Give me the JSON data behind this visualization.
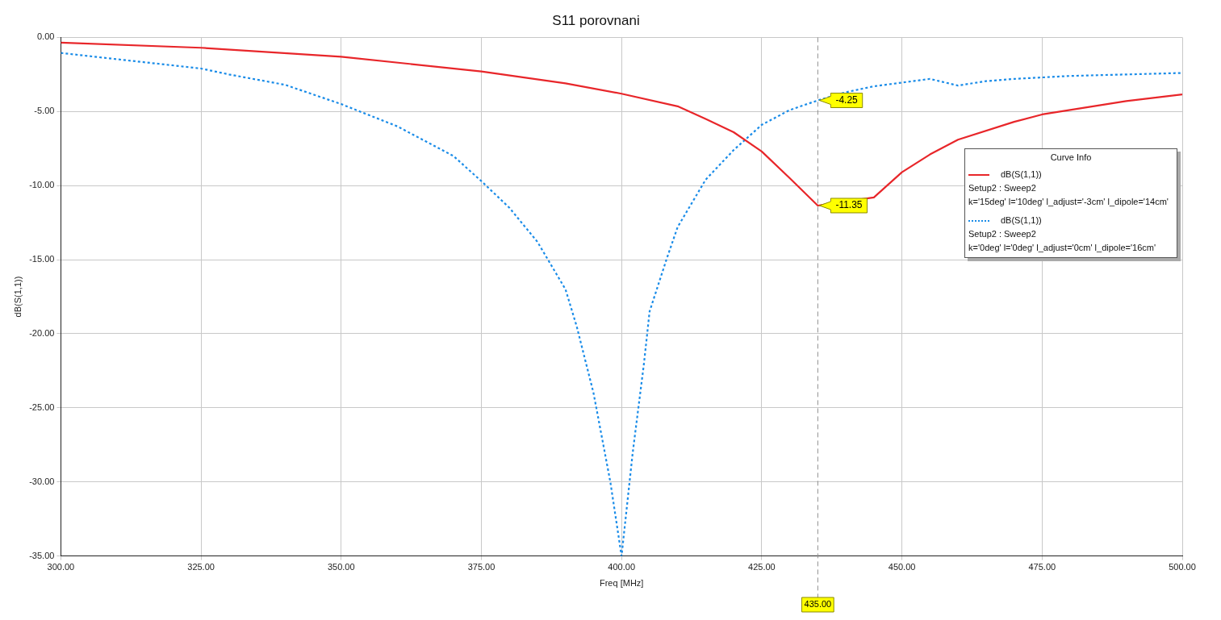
{
  "chart_data": {
    "type": "line",
    "title": "S11 porovnani",
    "xlabel": "Freq [MHz]",
    "ylabel": "dB(S(1,1))",
    "legend_title": "Curve Info",
    "xlim": [
      300,
      500
    ],
    "ylim": [
      -35,
      0
    ],
    "xticks": [
      {
        "value": 300,
        "label": "300.00"
      },
      {
        "value": 325,
        "label": "325.00"
      },
      {
        "value": 350,
        "label": "350.00"
      },
      {
        "value": 375,
        "label": "375.00"
      },
      {
        "value": 400,
        "label": "400.00"
      },
      {
        "value": 425,
        "label": "425.00"
      },
      {
        "value": 450,
        "label": "450.00"
      },
      {
        "value": 475,
        "label": "475.00"
      },
      {
        "value": 500,
        "label": "500.00"
      }
    ],
    "yticks": [
      {
        "value": -35,
        "label": "-35.00"
      },
      {
        "value": -30,
        "label": "-30.00"
      },
      {
        "value": -25,
        "label": "-25.00"
      },
      {
        "value": -20,
        "label": "-20.00"
      },
      {
        "value": -15,
        "label": "-15.00"
      },
      {
        "value": -10,
        "label": "-10.00"
      },
      {
        "value": -5,
        "label": "-5.00"
      },
      {
        "value": 0,
        "label": "0.00"
      }
    ],
    "grid": true,
    "legend": "right",
    "marker": "none",
    "series": [
      {
        "name": "dB(S(1,1))\nSetup2 : Sweep2\nk='15deg' l='10deg' l_adjust='-3cm' l_dipole='14cm'",
        "color": "#e8262a",
        "line_style": "solid",
        "x": [
          300,
          325,
          350,
          375,
          390,
          400,
          410,
          415,
          420,
          425,
          430,
          435,
          445,
          450,
          455,
          460,
          470,
          475,
          490,
          500
        ],
        "values": [
          -0.35,
          -0.7,
          -1.3,
          -2.3,
          -3.1,
          -3.8,
          -4.65,
          -5.5,
          -6.4,
          -7.7,
          -9.5,
          -11.35,
          -10.8,
          -9.1,
          -7.9,
          -6.9,
          -5.7,
          -5.2,
          -4.3,
          -3.85
        ]
      },
      {
        "name": "dB(S(1,1))\nSetup2 : Sweep2\nk='0deg' l='0deg' l_adjust='0cm' l_dipole='16cm'",
        "color": "#1a8ce8",
        "line_style": "dotted",
        "x": [
          300,
          325,
          330,
          340,
          350,
          360,
          370,
          375,
          380,
          385,
          390,
          392,
          395,
          398,
          400,
          402,
          404,
          405,
          408,
          410,
          415,
          420,
          425,
          430,
          435,
          440,
          445,
          450,
          455,
          460,
          465,
          470,
          480,
          490,
          500
        ],
        "values": [
          -1.05,
          -2.1,
          -2.5,
          -3.2,
          -4.5,
          -6.0,
          -8.0,
          -9.7,
          -11.5,
          -13.8,
          -17.0,
          -19.5,
          -24,
          -30,
          -35,
          -28,
          -22,
          -18.5,
          -15,
          -12.8,
          -9.6,
          -7.6,
          -5.9,
          -4.9,
          -4.25,
          -3.7,
          -3.3,
          -3.05,
          -2.8,
          -3.25,
          -2.95,
          -2.8,
          -2.6,
          -2.5,
          -2.4
        ]
      }
    ],
    "ref_lines": [
      {
        "axis": "x",
        "value": 435,
        "label": "435.00",
        "color": "#909090",
        "line_style": "dashed"
      }
    ],
    "annotations": [
      {
        "text": "-4.25",
        "x": 435,
        "y": -4.25
      },
      {
        "text": "-11.35",
        "x": 435,
        "y": -11.35
      }
    ]
  }
}
